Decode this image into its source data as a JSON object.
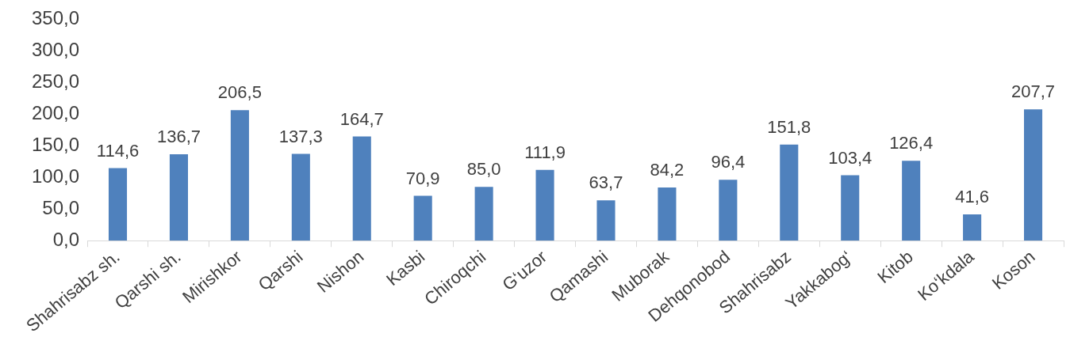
{
  "chart_data": {
    "type": "bar",
    "categories": [
      "Shahrisabz sh.",
      "Qarshi sh.",
      "Mirishkor",
      "Qarshi",
      "Nishon",
      "Kasbi",
      "Chiroqchi",
      "G‘uzor",
      "Qamashi",
      "Muborak",
      "Dehqonobod",
      "Shahrisabz",
      "Yakkabog‘",
      "Kitob",
      "Ko‘kdala",
      "Koson"
    ],
    "values": [
      114.6,
      136.7,
      206.5,
      137.3,
      164.7,
      70.9,
      85.0,
      111.9,
      63.7,
      84.2,
      96.4,
      151.8,
      103.4,
      126.4,
      41.6,
      207.7
    ],
    "value_labels": [
      "114,6",
      "136,7",
      "206,5",
      "137,3",
      "164,7",
      "70,9",
      "85,0",
      "111,9",
      "63,7",
      "84,2",
      "96,4",
      "151,8",
      "103,4",
      "126,4",
      "41,6",
      "207,7"
    ],
    "color": "#4f81bd",
    "ylim": [
      0,
      350
    ],
    "yticks": [
      {
        "value": 0,
        "label": "0,0"
      },
      {
        "value": 50,
        "label": "50,0"
      },
      {
        "value": 100,
        "label": "100,0"
      },
      {
        "value": 150,
        "label": "150,0"
      },
      {
        "value": 200,
        "label": "200,0"
      },
      {
        "value": 250,
        "label": "250,0"
      },
      {
        "value": 300,
        "label": "300,0"
      },
      {
        "value": 350,
        "label": "350,0"
      }
    ],
    "grid": false,
    "legend": false
  }
}
